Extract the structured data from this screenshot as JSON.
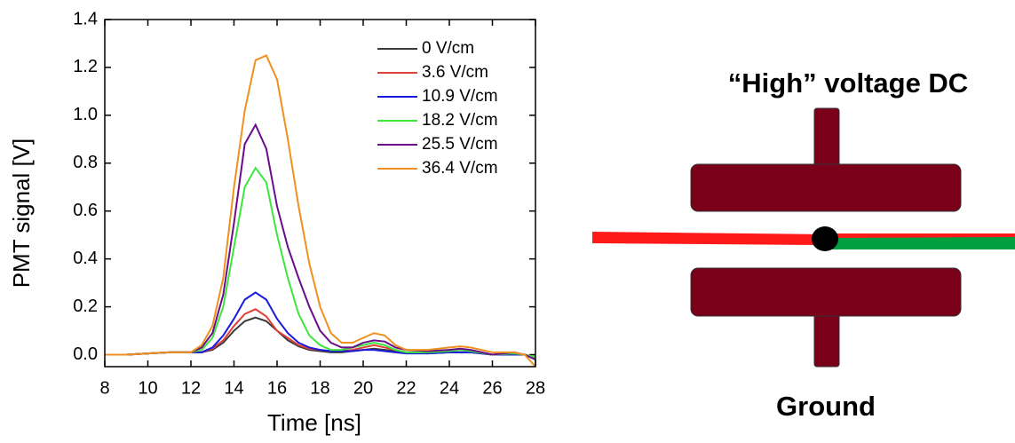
{
  "chart_data": {
    "type": "line",
    "xlabel": "Time [ns]",
    "ylabel": "PMT signal [V]",
    "x": [
      8,
      9,
      10,
      11,
      12,
      12.5,
      13,
      13.5,
      14,
      14.5,
      15,
      15.5,
      16,
      16.5,
      17,
      17.5,
      18,
      18.5,
      19,
      19.5,
      20,
      20.5,
      21,
      21.5,
      22,
      23,
      24,
      24.5,
      25,
      26,
      27,
      27.5,
      28
    ],
    "series": [
      {
        "name": "0 V/cm",
        "color": "#3a3a3a",
        "values": [
          0,
          0,
          0.005,
          0.01,
          0.01,
          0.01,
          0.02,
          0.05,
          0.1,
          0.14,
          0.155,
          0.14,
          0.1,
          0.06,
          0.035,
          0.02,
          0.015,
          0.01,
          0.01,
          0.015,
          0.02,
          0.025,
          0.02,
          0.015,
          0.01,
          0.005,
          0.01,
          0.01,
          0.01,
          0,
          0.005,
          0,
          -0.01
        ]
      },
      {
        "name": "3.6 V/cm",
        "color": "#e0403a",
        "values": [
          0,
          0,
          0.005,
          0.01,
          0.01,
          0.01,
          0.025,
          0.06,
          0.12,
          0.17,
          0.19,
          0.16,
          0.1,
          0.07,
          0.04,
          0.025,
          0.02,
          0.015,
          0.015,
          0.02,
          0.03,
          0.04,
          0.03,
          0.02,
          0.01,
          0.01,
          0.02,
          0.02,
          0.015,
          0,
          0.005,
          0,
          -0.01
        ]
      },
      {
        "name": "10.9 V/cm",
        "color": "#1a1adc",
        "values": [
          0,
          0,
          0.005,
          0.01,
          0.01,
          0.01,
          0.03,
          0.08,
          0.15,
          0.23,
          0.26,
          0.23,
          0.15,
          0.09,
          0.05,
          0.03,
          0.02,
          0.015,
          0.015,
          0.015,
          0.02,
          0.02,
          0.015,
          0.01,
          0.005,
          0.005,
          0.01,
          0.01,
          0.01,
          0,
          0,
          0,
          -0.02
        ]
      },
      {
        "name": "18.2 V/cm",
        "color": "#3ce63c",
        "values": [
          0,
          0,
          0.005,
          0.01,
          0.01,
          0.02,
          0.07,
          0.2,
          0.45,
          0.7,
          0.78,
          0.72,
          0.5,
          0.32,
          0.17,
          0.08,
          0.04,
          0.02,
          0.02,
          0.03,
          0.04,
          0.05,
          0.04,
          0.02,
          0.01,
          0.01,
          0.015,
          0.02,
          0.015,
          0,
          0.005,
          0,
          -0.01
        ]
      },
      {
        "name": "25.5 V/cm",
        "color": "#6a0d8a",
        "values": [
          0,
          0,
          0.005,
          0.01,
          0.01,
          0.03,
          0.09,
          0.25,
          0.55,
          0.88,
          0.96,
          0.86,
          0.62,
          0.45,
          0.32,
          0.2,
          0.1,
          0.05,
          0.03,
          0.03,
          0.05,
          0.06,
          0.055,
          0.03,
          0.02,
          0.015,
          0.02,
          0.025,
          0.02,
          0,
          0.01,
          0,
          -0.02
        ]
      },
      {
        "name": "36.4 V/cm",
        "color": "#f0901e",
        "values": [
          0,
          0,
          0.005,
          0.01,
          0.01,
          0.04,
          0.12,
          0.32,
          0.7,
          1.02,
          1.23,
          1.25,
          1.15,
          0.9,
          0.62,
          0.38,
          0.2,
          0.09,
          0.05,
          0.05,
          0.07,
          0.09,
          0.08,
          0.04,
          0.02,
          0.02,
          0.03,
          0.035,
          0.03,
          0.01,
          0.01,
          0,
          -0.05
        ]
      }
    ],
    "xlim": [
      8,
      28
    ],
    "xticks": [
      8,
      10,
      12,
      14,
      16,
      18,
      20,
      22,
      24,
      26,
      28
    ],
    "ylim": [
      -0.05,
      1.4
    ],
    "yticks": [
      {
        "value": 0,
        "label": "0.0"
      },
      0.2,
      0.4,
      0.6,
      0.8,
      {
        "value": 1,
        "label": "1.0"
      },
      1.2,
      1.4
    ],
    "legend": "upper-right"
  },
  "diagram": {
    "title": "“High” voltage DC",
    "bottom_label": "Ground"
  }
}
